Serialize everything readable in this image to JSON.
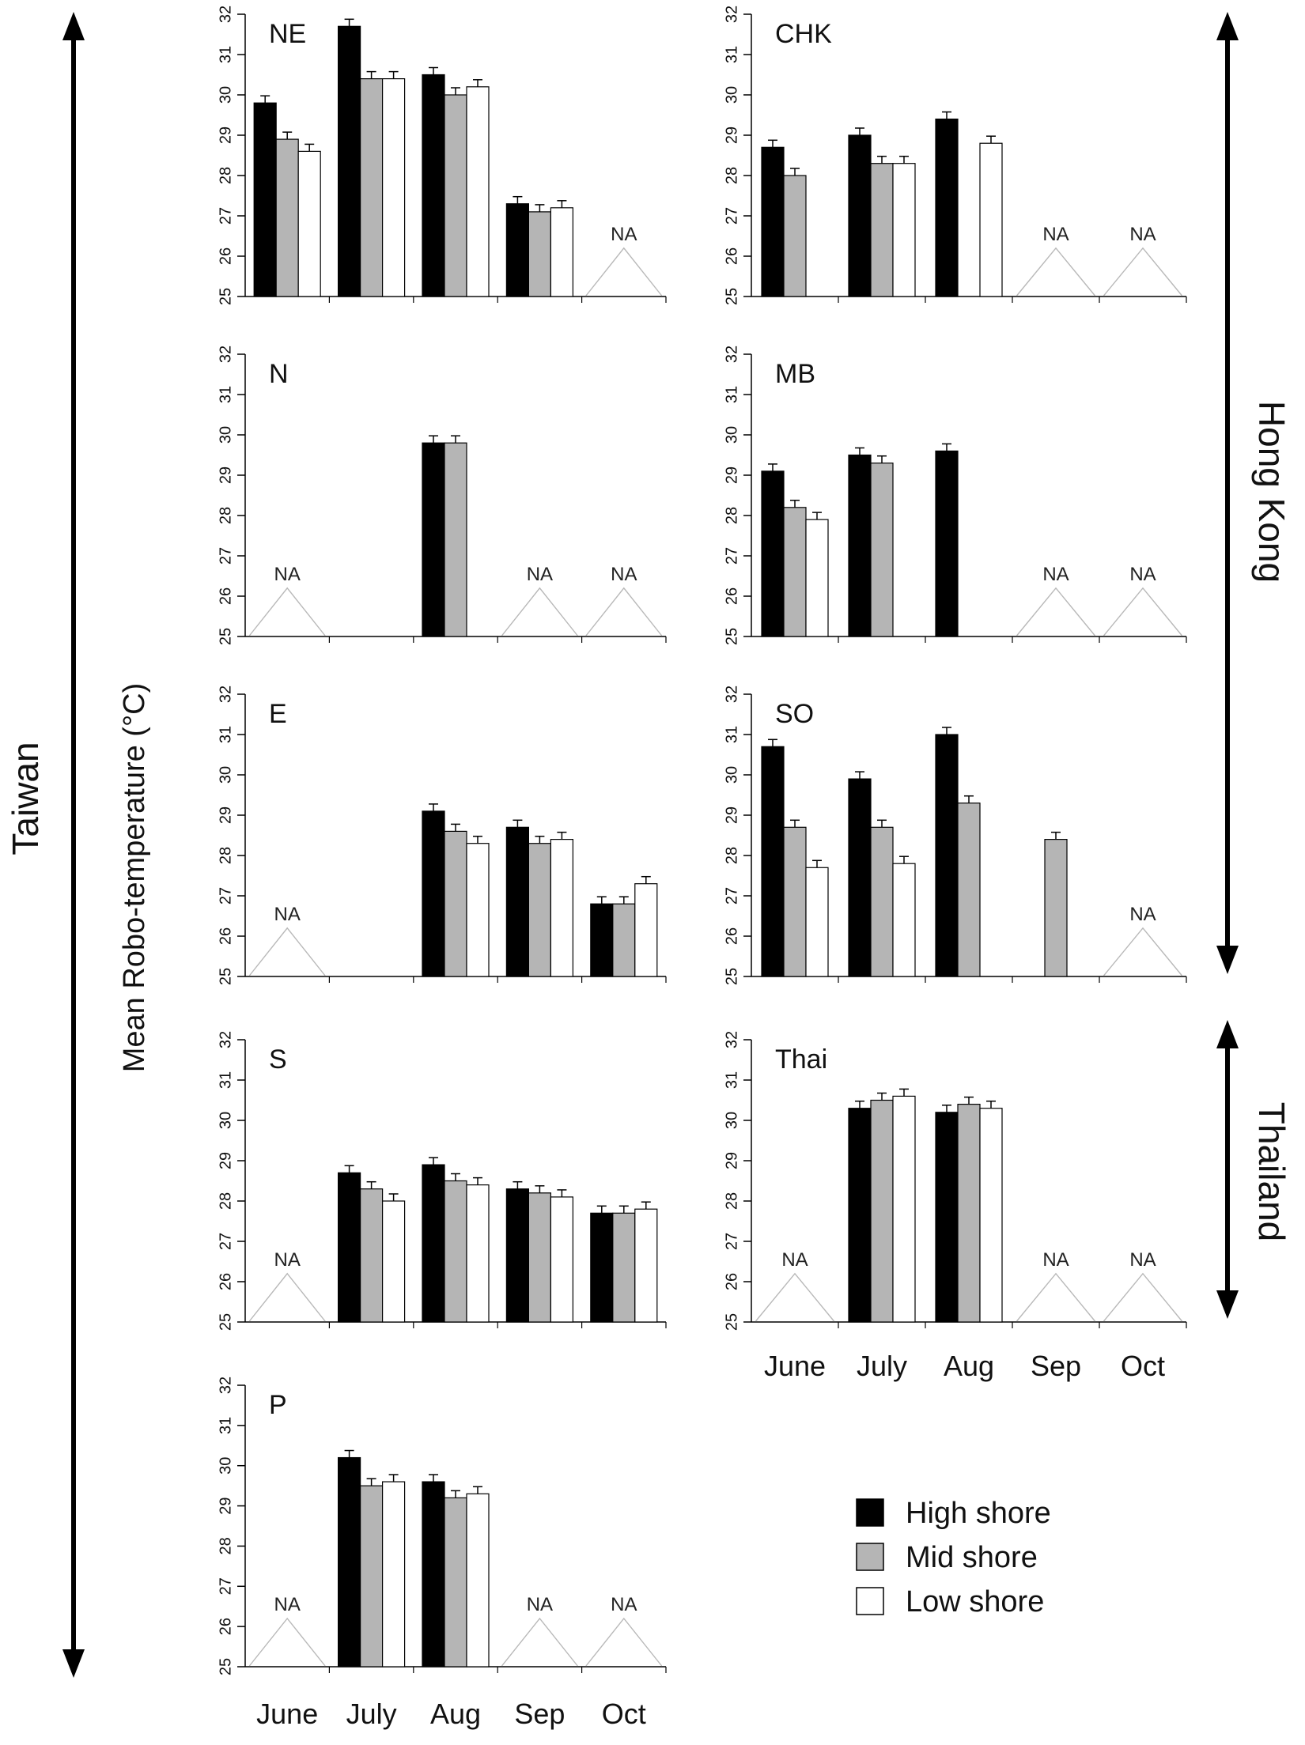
{
  "figure": {
    "ylabel": "Mean Robo-temperature (°C)",
    "months": [
      "June",
      "July",
      "Aug",
      "Sep",
      "Oct"
    ],
    "yticks": [
      "25",
      "26",
      "27",
      "28",
      "29",
      "30",
      "31",
      "32"
    ],
    "regions": [
      "Taiwan",
      "Hong Kong",
      "Thailand"
    ],
    "legend": [
      {
        "label": "High shore",
        "color": "#000000"
      },
      {
        "label": "Mid shore",
        "color": "#b5b5b5"
      },
      {
        "label": "Low shore",
        "color": "#ffffff"
      }
    ],
    "na_text": "NA"
  },
  "chart_data": [
    {
      "type": "bar",
      "title": "NE",
      "region": "Taiwan",
      "categories": [
        "June",
        "July",
        "Aug",
        "Sep",
        "Oct"
      ],
      "ylim": [
        25,
        32
      ],
      "xlabel": "",
      "ylabel": "Mean Robo-temperature (°C)",
      "series": [
        {
          "name": "High shore",
          "values": [
            29.8,
            31.7,
            30.5,
            27.3,
            null
          ]
        },
        {
          "name": "Mid shore",
          "values": [
            28.9,
            30.4,
            30.0,
            27.1,
            null
          ]
        },
        {
          "name": "Low shore",
          "values": [
            28.6,
            30.4,
            30.2,
            27.2,
            null
          ]
        }
      ],
      "na_months": [
        "Oct"
      ]
    },
    {
      "type": "bar",
      "title": "CHK",
      "region": "Hong Kong",
      "categories": [
        "June",
        "July",
        "Aug",
        "Sep",
        "Oct"
      ],
      "ylim": [
        25,
        32
      ],
      "xlabel": "",
      "ylabel": "Mean Robo-temperature (°C)",
      "series": [
        {
          "name": "High shore",
          "values": [
            28.7,
            29.0,
            29.4,
            null,
            null
          ]
        },
        {
          "name": "Mid shore",
          "values": [
            28.0,
            28.3,
            null,
            null,
            null
          ]
        },
        {
          "name": "Low shore",
          "values": [
            null,
            28.3,
            28.8,
            null,
            null
          ]
        }
      ],
      "na_months": [
        "Sep",
        "Oct"
      ]
    },
    {
      "type": "bar",
      "title": "N",
      "region": "Taiwan",
      "categories": [
        "June",
        "July",
        "Aug",
        "Sep",
        "Oct"
      ],
      "ylim": [
        25,
        32
      ],
      "xlabel": "",
      "ylabel": "Mean Robo-temperature (°C)",
      "series": [
        {
          "name": "High shore",
          "values": [
            null,
            null,
            29.8,
            null,
            null
          ]
        },
        {
          "name": "Mid shore",
          "values": [
            null,
            null,
            29.8,
            null,
            null
          ]
        },
        {
          "name": "Low shore",
          "values": [
            null,
            null,
            null,
            null,
            null
          ]
        }
      ],
      "na_months": [
        "June",
        "Sep",
        "Oct"
      ]
    },
    {
      "type": "bar",
      "title": "MB",
      "region": "Hong Kong",
      "categories": [
        "June",
        "July",
        "Aug",
        "Sep",
        "Oct"
      ],
      "ylim": [
        25,
        32
      ],
      "xlabel": "",
      "ylabel": "Mean Robo-temperature (°C)",
      "series": [
        {
          "name": "High shore",
          "values": [
            29.1,
            29.5,
            29.6,
            null,
            null
          ]
        },
        {
          "name": "Mid shore",
          "values": [
            28.2,
            29.3,
            null,
            null,
            null
          ]
        },
        {
          "name": "Low shore",
          "values": [
            27.9,
            null,
            null,
            null,
            null
          ]
        }
      ],
      "na_months": [
        "Sep",
        "Oct"
      ]
    },
    {
      "type": "bar",
      "title": "E",
      "region": "Taiwan",
      "categories": [
        "June",
        "July",
        "Aug",
        "Sep",
        "Oct"
      ],
      "ylim": [
        25,
        32
      ],
      "xlabel": "",
      "ylabel": "Mean Robo-temperature (°C)",
      "series": [
        {
          "name": "High shore",
          "values": [
            null,
            null,
            29.1,
            28.7,
            26.8
          ]
        },
        {
          "name": "Mid shore",
          "values": [
            null,
            null,
            28.6,
            28.3,
            26.8
          ]
        },
        {
          "name": "Low shore",
          "values": [
            null,
            null,
            28.3,
            28.4,
            27.3
          ]
        }
      ],
      "na_months": [
        "June"
      ]
    },
    {
      "type": "bar",
      "title": "SO",
      "region": "Hong Kong",
      "categories": [
        "June",
        "July",
        "Aug",
        "Sep",
        "Oct"
      ],
      "ylim": [
        25,
        32
      ],
      "xlabel": "",
      "ylabel": "Mean Robo-temperature (°C)",
      "series": [
        {
          "name": "High shore",
          "values": [
            30.7,
            29.9,
            31.0,
            null,
            null
          ]
        },
        {
          "name": "Mid shore",
          "values": [
            28.7,
            28.7,
            29.3,
            28.4,
            null
          ]
        },
        {
          "name": "Low shore",
          "values": [
            27.7,
            27.8,
            null,
            null,
            null
          ]
        }
      ],
      "na_months": [
        "Oct"
      ]
    },
    {
      "type": "bar",
      "title": "S",
      "region": "Taiwan",
      "categories": [
        "June",
        "July",
        "Aug",
        "Sep",
        "Oct"
      ],
      "ylim": [
        25,
        32
      ],
      "xlabel": "",
      "ylabel": "Mean Robo-temperature (°C)",
      "series": [
        {
          "name": "High shore",
          "values": [
            null,
            28.7,
            28.9,
            28.3,
            27.7
          ]
        },
        {
          "name": "Mid shore",
          "values": [
            null,
            28.3,
            28.5,
            28.2,
            27.7
          ]
        },
        {
          "name": "Low shore",
          "values": [
            null,
            28.0,
            28.4,
            28.1,
            27.8
          ]
        }
      ],
      "na_months": [
        "June"
      ]
    },
    {
      "type": "bar",
      "title": "Thai",
      "region": "Thailand",
      "categories": [
        "June",
        "July",
        "Aug",
        "Sep",
        "Oct"
      ],
      "ylim": [
        25,
        32
      ],
      "xlabel": "",
      "ylabel": "Mean Robo-temperature (°C)",
      "series": [
        {
          "name": "High shore",
          "values": [
            null,
            30.3,
            30.2,
            null,
            null
          ]
        },
        {
          "name": "Mid shore",
          "values": [
            null,
            30.5,
            30.4,
            null,
            null
          ]
        },
        {
          "name": "Low shore",
          "values": [
            null,
            30.6,
            30.3,
            null,
            null
          ]
        }
      ],
      "na_months": [
        "June",
        "Sep",
        "Oct"
      ]
    },
    {
      "type": "bar",
      "title": "P",
      "region": "Taiwan",
      "categories": [
        "June",
        "July",
        "Aug",
        "Sep",
        "Oct"
      ],
      "ylim": [
        25,
        32
      ],
      "xlabel": "",
      "ylabel": "Mean Robo-temperature (°C)",
      "series": [
        {
          "name": "High shore",
          "values": [
            null,
            30.2,
            29.6,
            null,
            null
          ]
        },
        {
          "name": "Mid shore",
          "values": [
            null,
            29.5,
            29.2,
            null,
            null
          ]
        },
        {
          "name": "Low shore",
          "values": [
            null,
            29.6,
            29.3,
            null,
            null
          ]
        }
      ],
      "na_months": [
        "June",
        "Sep",
        "Oct"
      ]
    }
  ]
}
